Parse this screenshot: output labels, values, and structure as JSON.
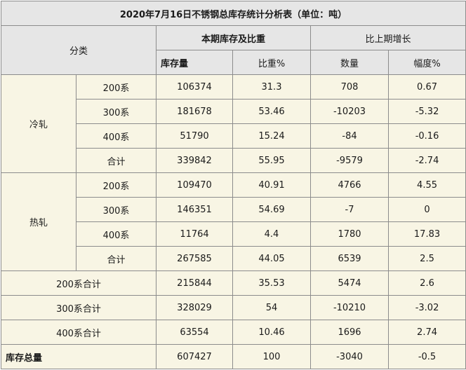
{
  "title": "2020年7月16日不锈钢总库存统计分析表（单位：吨）",
  "header": {
    "category": "分类",
    "current_group": "本期库存及比重",
    "change_group": "比上期增长",
    "stock": "库存量",
    "share": "比重%",
    "quantity": "数量",
    "range": "幅度%"
  },
  "cold": {
    "label": "冷轧",
    "rows": [
      {
        "sub": "200系",
        "stock": "106374",
        "share": "31.3",
        "qty": "708",
        "pct": "0.67"
      },
      {
        "sub": "300系",
        "stock": "181678",
        "share": "53.46",
        "qty": "-10203",
        "pct": "-5.32"
      },
      {
        "sub": "400系",
        "stock": "51790",
        "share": "15.24",
        "qty": "-84",
        "pct": "-0.16"
      },
      {
        "sub": "合计",
        "stock": "339842",
        "share": "55.95",
        "qty": "-9579",
        "pct": "-2.74"
      }
    ]
  },
  "hot": {
    "label": "热轧",
    "rows": [
      {
        "sub": "200系",
        "stock": "109470",
        "share": "40.91",
        "qty": "4766",
        "pct": "4.55"
      },
      {
        "sub": "300系",
        "stock": "146351",
        "share": "54.69",
        "qty": "-7",
        "pct": "0"
      },
      {
        "sub": "400系",
        "stock": "11764",
        "share": "4.4",
        "qty": "1780",
        "pct": "17.83"
      },
      {
        "sub": "合计",
        "stock": "267585",
        "share": "44.05",
        "qty": "6539",
        "pct": "2.5"
      }
    ]
  },
  "totals": [
    {
      "label": "200系合计",
      "stock": "215844",
      "share": "35.53",
      "qty": "5474",
      "pct": "2.6"
    },
    {
      "label": "300系合计",
      "stock": "328029",
      "share": "54",
      "qty": "-10210",
      "pct": "-3.02"
    },
    {
      "label": "400系合计",
      "stock": "63554",
      "share": "10.46",
      "qty": "1696",
      "pct": "2.74"
    }
  ],
  "grand_total": {
    "label": "库存总量",
    "stock": "607427",
    "share": "100",
    "qty": "-3040",
    "pct": "-0.5"
  }
}
